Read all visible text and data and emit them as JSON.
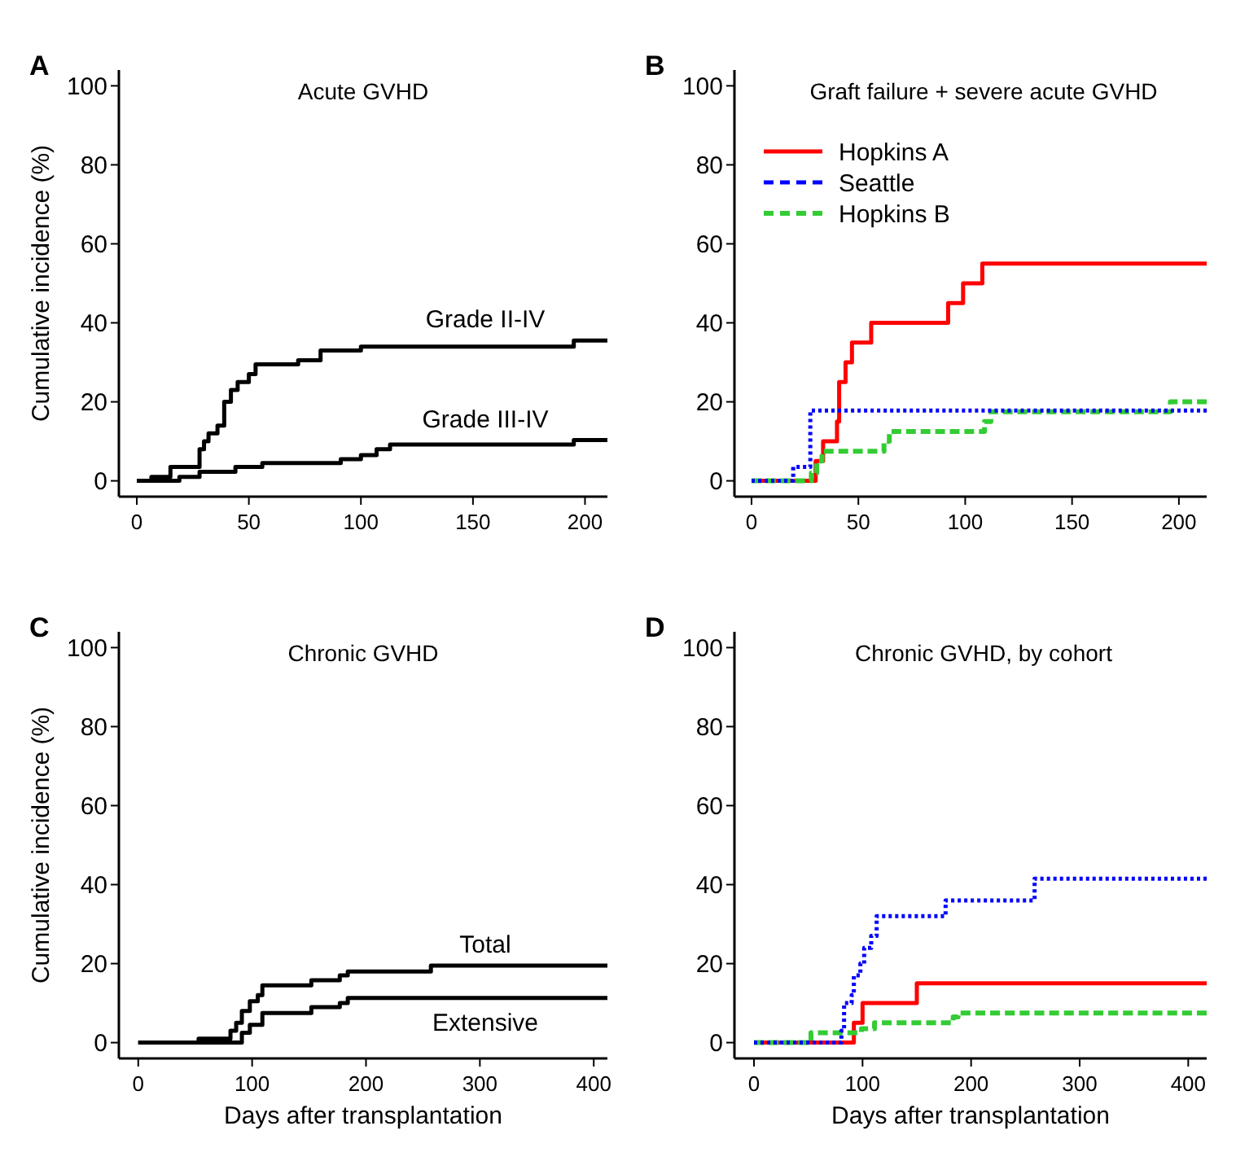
{
  "chart_data": [
    {
      "type": "step",
      "title": "Acute GVHD",
      "ylabel": "Cumulative incidence (%)",
      "xlim": [
        -8,
        210
      ],
      "xticks": [
        0,
        50,
        100,
        150,
        200
      ],
      "ylim": [
        -4,
        104
      ],
      "yticks": [
        0,
        20,
        40,
        60,
        80,
        100
      ],
      "legend": false,
      "annotations": [
        "A"
      ],
      "series": [
        {
          "name": "Grade II-IV",
          "color": "#000000",
          "line_style": "solid",
          "x": [
            0,
            6.5,
            15,
            28,
            30,
            32,
            36,
            39,
            42,
            45,
            50,
            53,
            72,
            82,
            100,
            195,
            210
          ],
          "values": [
            0,
            1,
            3.5,
            8,
            10,
            12,
            14,
            20,
            23,
            25,
            27,
            29.5,
            30.5,
            33,
            34,
            35.5,
            35.5
          ]
        },
        {
          "name": "Grade III-IV",
          "color": "#000000",
          "line_style": "solid",
          "x": [
            0,
            19,
            28,
            44,
            56,
            91,
            100,
            107,
            113,
            195,
            210
          ],
          "values": [
            0,
            1,
            2.3,
            3.5,
            4.5,
            5.5,
            6.5,
            8,
            9.2,
            10.3,
            10.3
          ]
        }
      ]
    },
    {
      "type": "step",
      "title": "Graft failure + severe acute GVHD",
      "xlim": [
        -8,
        213
      ],
      "xticks": [
        0,
        50,
        100,
        150,
        200
      ],
      "ylim": [
        -4,
        104
      ],
      "yticks": [
        0,
        20,
        40,
        60,
        80,
        100
      ],
      "legend": "top left",
      "annotations": [
        "B"
      ],
      "series": [
        {
          "name": "Hopkins A",
          "color": "#ff0000",
          "line_style": "solid",
          "x": [
            0,
            30,
            33.5,
            40,
            41,
            44,
            47,
            56,
            92,
            99,
            108,
            213
          ],
          "values": [
            0,
            5,
            10,
            15,
            25,
            30,
            35,
            40,
            45,
            50,
            55,
            55
          ]
        },
        {
          "name": "Seattle",
          "color": "#0000ff",
          "line_style": "dotted",
          "x": [
            0,
            19.5,
            27.5,
            213
          ],
          "values": [
            0,
            3.5,
            17.8,
            17.8
          ]
        },
        {
          "name": "Hopkins B",
          "color": "#33cc33",
          "line_style": "dashed",
          "x": [
            0,
            28,
            30.5,
            33,
            62,
            64.5,
            109,
            112,
            196,
            213
          ],
          "values": [
            0,
            2,
            5,
            7.5,
            10,
            12.5,
            15,
            17.5,
            20,
            20
          ]
        }
      ]
    },
    {
      "type": "step",
      "title": "Chronic GVHD",
      "xlabel": "Days after transplantation",
      "ylabel": "Cumulative incidence (%)",
      "xlim": [
        -17,
        412
      ],
      "xticks": [
        0,
        100,
        200,
        300,
        400
      ],
      "ylim": [
        -4,
        104
      ],
      "yticks": [
        0,
        20,
        40,
        60,
        80,
        100
      ],
      "legend": false,
      "annotations": [
        "C"
      ],
      "series": [
        {
          "name": "Total",
          "color": "#000000",
          "line_style": "solid",
          "x": [
            0,
            53,
            81,
            86,
            91,
            98,
            105,
            109,
            152,
            177,
            184,
            257,
            412
          ],
          "values": [
            0,
            1,
            3,
            5,
            8,
            10.5,
            12,
            14.5,
            15.8,
            17,
            18,
            19.5,
            19.5
          ]
        },
        {
          "name": "Extensive",
          "color": "#000000",
          "line_style": "solid",
          "x": [
            0,
            91,
            98,
            109,
            152,
            177,
            184,
            412
          ],
          "values": [
            0,
            2.5,
            4.5,
            7.5,
            9,
            10,
            11.3,
            11.3
          ]
        }
      ]
    },
    {
      "type": "step",
      "title": "Chronic GVHD, by cohort",
      "xlabel": "Days after transplantation",
      "xlim": [
        -18,
        417
      ],
      "xticks": [
        0,
        100,
        200,
        300,
        400
      ],
      "ylim": [
        -4,
        104
      ],
      "yticks": [
        0,
        20,
        40,
        60,
        80,
        100
      ],
      "legend": false,
      "annotations": [
        "D"
      ],
      "series": [
        {
          "color": "#ff0000",
          "line_style": "solid",
          "x": [
            0,
            92,
            100,
            150,
            417
          ],
          "values": [
            0,
            5,
            10,
            15,
            15
          ]
        },
        {
          "color": "#0000ff",
          "line_style": "dotted",
          "x": [
            0,
            80.5,
            83,
            90,
            92,
            98,
            101.5,
            108,
            113,
            176.5,
            258.5,
            417
          ],
          "values": [
            0,
            3,
            10,
            12,
            17,
            20,
            24,
            27,
            32,
            36,
            41.5,
            41.5
          ]
        },
        {
          "color": "#33cc33",
          "line_style": "dashed",
          "x": [
            0,
            52.5,
            99,
            111,
            183.5,
            188,
            417
          ],
          "values": [
            0,
            2.5,
            3.5,
            5,
            6.5,
            7.5,
            7.5
          ]
        }
      ]
    }
  ]
}
